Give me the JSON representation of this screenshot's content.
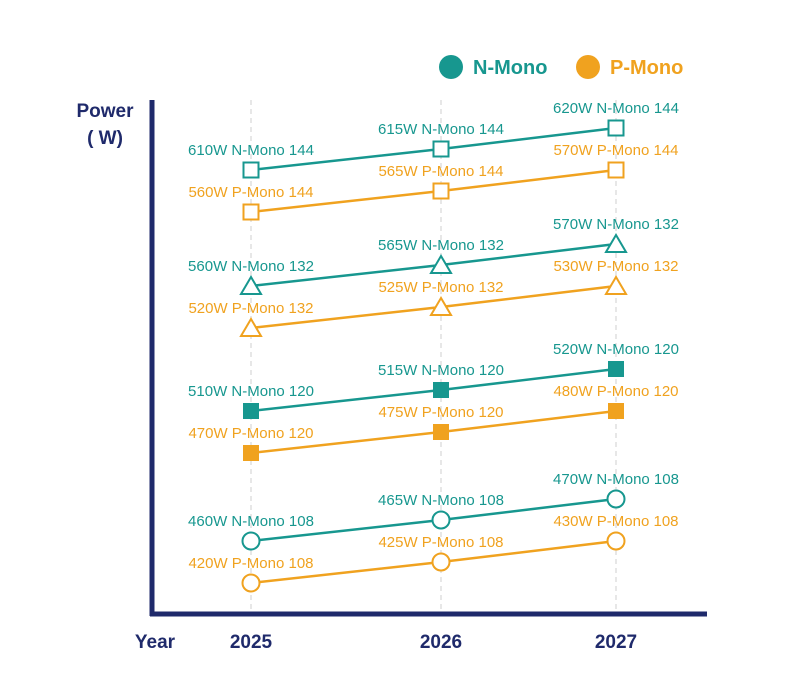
{
  "chart_data": {
    "type": "line",
    "x": [
      "2025",
      "2026",
      "2027"
    ],
    "ylabel_line1": "Power",
    "ylabel_line2": "( W)",
    "xlabel": "Year",
    "ylim": [
      400,
      630
    ],
    "grid": "vertical dashed",
    "legend": {
      "placement": "top-right",
      "entries": [
        {
          "name": "N-Mono",
          "color": "#17978f"
        },
        {
          "name": "P-Mono",
          "color": "#f0a21f"
        }
      ]
    },
    "colors": {
      "N": "#17978f",
      "P": "#f0a21f",
      "axis": "#1f2a6b",
      "grid": "#cfcfcf"
    },
    "series": [
      {
        "group": "N",
        "marker": "square-open",
        "values": [
          610,
          615,
          620
        ],
        "labels": [
          "610W N-Mono 144",
          "615W N-Mono 144",
          "620W N-Mono 144"
        ]
      },
      {
        "group": "P",
        "marker": "square-open",
        "values": [
          560,
          565,
          570
        ],
        "labels": [
          "560W P-Mono 144",
          "565W P-Mono 144",
          "570W P-Mono 144"
        ]
      },
      {
        "group": "N",
        "marker": "triangle-open",
        "values": [
          560,
          565,
          570
        ],
        "labels": [
          "560W N-Mono 132",
          "565W N-Mono 132",
          "570W N-Mono 132"
        ]
      },
      {
        "group": "P",
        "marker": "triangle-open",
        "values": [
          520,
          525,
          530
        ],
        "labels": [
          "520W P-Mono 132",
          "525W P-Mono 132",
          "530W P-Mono 132"
        ]
      },
      {
        "group": "N",
        "marker": "square-filled",
        "values": [
          510,
          515,
          520
        ],
        "labels": [
          "510W N-Mono 120",
          "515W N-Mono 120",
          "520W N-Mono 120"
        ]
      },
      {
        "group": "P",
        "marker": "square-filled",
        "values": [
          470,
          475,
          480
        ],
        "labels": [
          "470W P-Mono 120",
          "475W P-Mono 120",
          "480W P-Mono 120"
        ]
      },
      {
        "group": "N",
        "marker": "circle-open",
        "values": [
          460,
          465,
          470
        ],
        "labels": [
          "460W N-Mono 108",
          "465W N-Mono 108",
          "470W N-Mono 108"
        ]
      },
      {
        "group": "P",
        "marker": "circle-open",
        "values": [
          420,
          425,
          430
        ],
        "labels": [
          "420W P-Mono 108",
          "425W P-Mono 108",
          "430W P-Mono 108"
        ]
      }
    ]
  }
}
